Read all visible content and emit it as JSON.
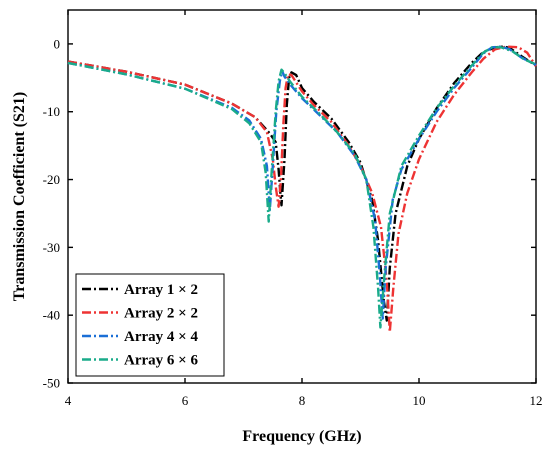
{
  "chart_data": {
    "type": "line",
    "xlabel": "Frequency (GHz)",
    "ylabel": "Transmission Coefficient (S21)",
    "xlim": [
      4,
      12
    ],
    "ylim": [
      -50,
      5
    ],
    "x_ticks": [
      4,
      6,
      8,
      10,
      12
    ],
    "y_ticks": [
      0,
      -10,
      -20,
      -30,
      -40,
      -50
    ],
    "x_tick_labels": [
      "4",
      "6",
      "8",
      "10",
      "12"
    ],
    "y_tick_labels": [
      "0",
      "-10",
      "-20",
      "-30",
      "-40",
      "-50"
    ],
    "grid": false,
    "legend_position": "bottom-left",
    "line_style": "dash-dot",
    "series": [
      {
        "name": "Array 1 × 2",
        "color": "#000000",
        "points": [
          [
            4.0,
            -2.6
          ],
          [
            5.0,
            -4.1
          ],
          [
            6.0,
            -6.0
          ],
          [
            6.8,
            -8.8
          ],
          [
            7.2,
            -10.8
          ],
          [
            7.45,
            -13.2
          ],
          [
            7.55,
            -14.5
          ],
          [
            7.6,
            -18.5
          ],
          [
            7.63,
            -22.0
          ],
          [
            7.65,
            -23.8
          ],
          [
            7.7,
            -17.0
          ],
          [
            7.74,
            -9.0
          ],
          [
            7.78,
            -5.0
          ],
          [
            7.82,
            -4.2
          ],
          [
            7.9,
            -4.6
          ],
          [
            8.0,
            -6.5
          ],
          [
            8.2,
            -8.5
          ],
          [
            8.5,
            -11.0
          ],
          [
            8.8,
            -14.5
          ],
          [
            9.0,
            -17.5
          ],
          [
            9.2,
            -23.0
          ],
          [
            9.3,
            -29.0
          ],
          [
            9.4,
            -38.0
          ],
          [
            9.45,
            -40.8
          ],
          [
            9.5,
            -33.0
          ],
          [
            9.6,
            -25.0
          ],
          [
            9.8,
            -18.0
          ],
          [
            10.0,
            -14.0
          ],
          [
            10.3,
            -9.5
          ],
          [
            10.6,
            -5.8
          ],
          [
            10.9,
            -2.8
          ],
          [
            11.1,
            -1.2
          ],
          [
            11.3,
            -0.5
          ],
          [
            11.45,
            -0.4
          ],
          [
            11.55,
            -0.6
          ],
          [
            11.75,
            -1.8
          ],
          [
            12.0,
            -3.2
          ]
        ]
      },
      {
        "name": "Array 2 × 2",
        "color": "#ee3333",
        "points": [
          [
            4.0,
            -2.6
          ],
          [
            5.0,
            -4.1
          ],
          [
            6.0,
            -6.0
          ],
          [
            6.8,
            -8.8
          ],
          [
            7.2,
            -10.8
          ],
          [
            7.4,
            -13.0
          ],
          [
            7.5,
            -17.0
          ],
          [
            7.55,
            -21.0
          ],
          [
            7.6,
            -24.0
          ],
          [
            7.64,
            -20.0
          ],
          [
            7.68,
            -12.0
          ],
          [
            7.72,
            -6.5
          ],
          [
            7.76,
            -4.5
          ],
          [
            7.82,
            -4.6
          ],
          [
            8.0,
            -7.0
          ],
          [
            8.2,
            -9.0
          ],
          [
            8.5,
            -11.5
          ],
          [
            8.8,
            -15.0
          ],
          [
            9.0,
            -18.0
          ],
          [
            9.2,
            -22.0
          ],
          [
            9.35,
            -27.0
          ],
          [
            9.45,
            -35.0
          ],
          [
            9.5,
            -42.5
          ],
          [
            9.56,
            -36.0
          ],
          [
            9.65,
            -28.0
          ],
          [
            9.8,
            -22.0
          ],
          [
            10.0,
            -17.0
          ],
          [
            10.3,
            -11.5
          ],
          [
            10.6,
            -7.5
          ],
          [
            10.9,
            -4.2
          ],
          [
            11.1,
            -2.2
          ],
          [
            11.3,
            -0.8
          ],
          [
            11.5,
            -0.4
          ],
          [
            11.7,
            -0.5
          ],
          [
            11.85,
            -1.3
          ],
          [
            12.0,
            -3.3
          ]
        ]
      },
      {
        "name": "Array 4 × 4",
        "color": "#1a6fd6",
        "points": [
          [
            4.0,
            -2.8
          ],
          [
            5.0,
            -4.5
          ],
          [
            6.0,
            -6.6
          ],
          [
            6.8,
            -9.4
          ],
          [
            7.1,
            -11.3
          ],
          [
            7.3,
            -14.0
          ],
          [
            7.4,
            -18.0
          ],
          [
            7.45,
            -24.5
          ],
          [
            7.5,
            -18.0
          ],
          [
            7.56,
            -10.0
          ],
          [
            7.62,
            -5.5
          ],
          [
            7.66,
            -4.0
          ],
          [
            7.7,
            -4.8
          ],
          [
            7.8,
            -6.0
          ],
          [
            8.0,
            -8.0
          ],
          [
            8.3,
            -10.5
          ],
          [
            8.6,
            -13.0
          ],
          [
            8.9,
            -16.5
          ],
          [
            9.1,
            -20.0
          ],
          [
            9.25,
            -26.0
          ],
          [
            9.33,
            -34.0
          ],
          [
            9.38,
            -40.5
          ],
          [
            9.43,
            -33.0
          ],
          [
            9.55,
            -23.0
          ],
          [
            9.7,
            -18.5
          ],
          [
            10.0,
            -14.0
          ],
          [
            10.3,
            -10.0
          ],
          [
            10.6,
            -6.5
          ],
          [
            10.9,
            -3.5
          ],
          [
            11.1,
            -1.4
          ],
          [
            11.25,
            -0.5
          ],
          [
            11.4,
            -0.4
          ],
          [
            11.55,
            -0.8
          ],
          [
            11.75,
            -2.0
          ],
          [
            12.0,
            -3.1
          ]
        ]
      },
      {
        "name": "Array 6 × 6",
        "color": "#1aab8a",
        "points": [
          [
            4.0,
            -2.8
          ],
          [
            5.0,
            -4.5
          ],
          [
            6.0,
            -6.6
          ],
          [
            6.8,
            -9.6
          ],
          [
            7.1,
            -11.7
          ],
          [
            7.3,
            -14.5
          ],
          [
            7.38,
            -19.0
          ],
          [
            7.43,
            -26.2
          ],
          [
            7.48,
            -19.0
          ],
          [
            7.55,
            -10.0
          ],
          [
            7.6,
            -5.5
          ],
          [
            7.65,
            -3.8
          ],
          [
            7.7,
            -4.3
          ],
          [
            7.8,
            -5.6
          ],
          [
            8.0,
            -7.8
          ],
          [
            8.3,
            -10.3
          ],
          [
            8.6,
            -13.0
          ],
          [
            8.9,
            -16.2
          ],
          [
            9.1,
            -20.0
          ],
          [
            9.22,
            -27.0
          ],
          [
            9.3,
            -36.0
          ],
          [
            9.34,
            -41.8
          ],
          [
            9.4,
            -35.0
          ],
          [
            9.5,
            -25.0
          ],
          [
            9.7,
            -18.0
          ],
          [
            10.0,
            -13.5
          ],
          [
            10.3,
            -9.5
          ],
          [
            10.6,
            -6.2
          ],
          [
            10.9,
            -3.2
          ],
          [
            11.1,
            -1.3
          ],
          [
            11.25,
            -0.5
          ],
          [
            11.4,
            -0.5
          ],
          [
            11.6,
            -1.1
          ],
          [
            11.8,
            -2.3
          ],
          [
            12.0,
            -3.0
          ]
        ]
      }
    ]
  }
}
